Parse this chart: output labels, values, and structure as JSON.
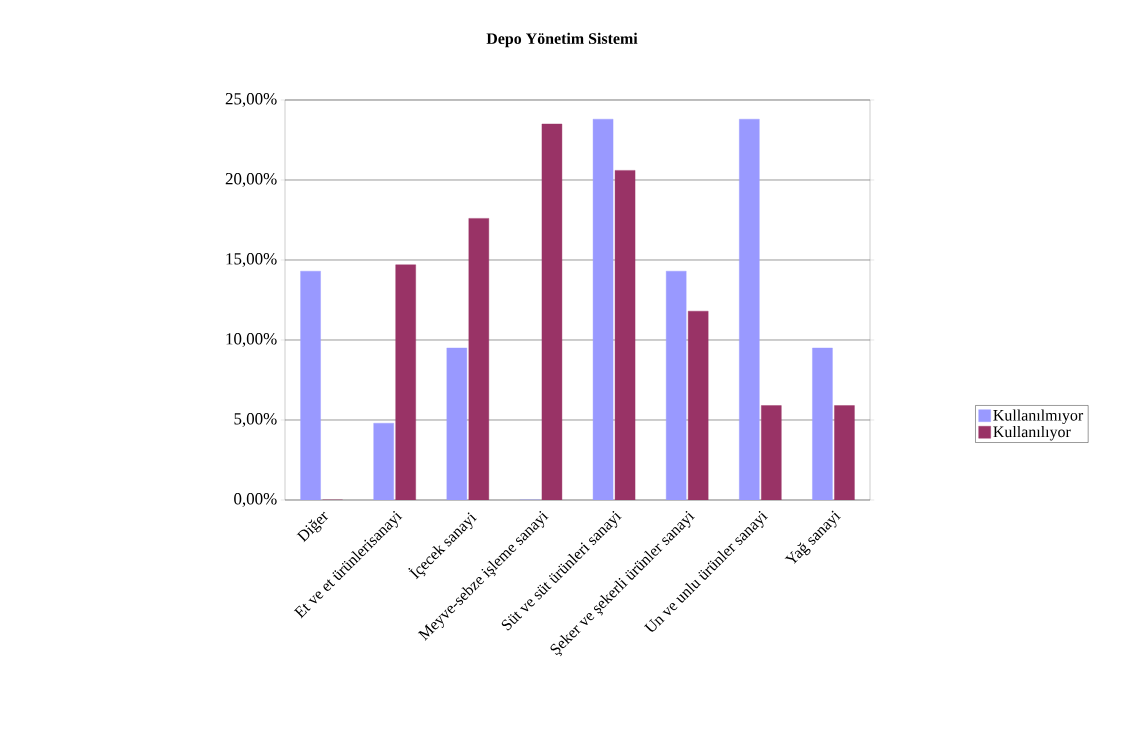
{
  "chart_data": {
    "type": "bar",
    "title": "Depo Yönetim Sistemi",
    "categories": [
      "Diğer",
      "Et ve et ürünlerisanayi",
      "İçecek sanayi",
      "Meyve-sebze işleme sanayi",
      "Süt ve  süt ürünleri sanayi",
      "Şeker ve şekerli ürünler sanayi",
      "Un ve unlu ürünler sanayi",
      "Yağ sanayi"
    ],
    "series": [
      {
        "name": "Kullanılmıyor",
        "color": "#9999ff",
        "values": [
          14.3,
          4.8,
          9.5,
          0,
          23.8,
          14.3,
          23.8,
          9.5
        ]
      },
      {
        "name": "Kullanılıyor",
        "color": "#993366",
        "values": [
          0,
          14.7,
          17.6,
          23.5,
          20.6,
          11.8,
          5.9,
          5.9
        ]
      }
    ],
    "ylim": [
      0,
      25
    ],
    "yticks": [
      {
        "value": 0,
        "label": "0,00%"
      },
      {
        "value": 5,
        "label": "5,00%"
      },
      {
        "value": 10,
        "label": "10,00%"
      },
      {
        "value": 15,
        "label": "15,00%"
      },
      {
        "value": 20,
        "label": "20,00%"
      },
      {
        "value": 25,
        "label": "25,00%"
      }
    ],
    "grid": "y",
    "legend": "right"
  }
}
